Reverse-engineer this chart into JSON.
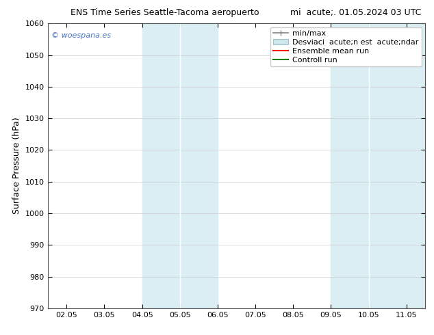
{
  "title": "ENS Time Series Seattle-Tacoma aeropuerto        mi  acute;. 01.05.2024 03 UTC",
  "title_left": "ENS Time Series Seattle-Tacoma aeropuerto",
  "title_right": "mi  acute;. 01.05.2024 03 UTC",
  "ylabel": "Surface Pressure (hPa)",
  "ylim": [
    970,
    1060
  ],
  "yticks": [
    970,
    980,
    990,
    1000,
    1010,
    1020,
    1030,
    1040,
    1050,
    1060
  ],
  "xtick_positions": [
    1,
    2,
    3,
    4,
    5,
    6,
    7,
    8,
    9,
    10
  ],
  "xtick_labels": [
    "02.05",
    "03.05",
    "04.05",
    "05.05",
    "06.05",
    "07.05",
    "08.05",
    "09.05",
    "10.05",
    "11.05"
  ],
  "xlim": [
    0.5,
    10.5
  ],
  "band_color": "#daeef3",
  "band1_x1": 3.0,
  "band1_x2": 3.5,
  "band1b_x1": 3.5,
  "band1b_x2": 5.0,
  "band2_x1": 8.0,
  "band2_x2": 8.5,
  "band2b_x1": 8.5,
  "band2b_x2": 10.5,
  "background_color": "#ffffff",
  "watermark": "© woespana.es",
  "watermark_color": "#4472c4",
  "legend_minmax_color": "#808080",
  "legend_std_facecolor": "#d0e8ed",
  "legend_std_edgecolor": "#a0c0c8",
  "legend_ens_color": "#ff0000",
  "legend_ctrl_color": "#008000",
  "title_fontsize": 9,
  "ylabel_fontsize": 9,
  "tick_fontsize": 8,
  "legend_fontsize": 8,
  "watermark_fontsize": 8
}
